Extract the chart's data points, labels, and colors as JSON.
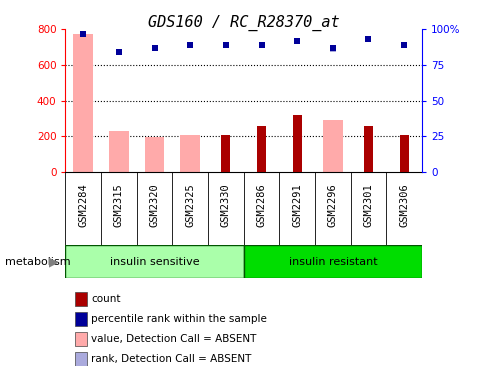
{
  "title": "GDS160 / RC_R28370_at",
  "samples": [
    "GSM2284",
    "GSM2315",
    "GSM2320",
    "GSM2325",
    "GSM2330",
    "GSM2286",
    "GSM2291",
    "GSM2296",
    "GSM2301",
    "GSM2306"
  ],
  "count_values": [
    0,
    0,
    0,
    0,
    210,
    260,
    320,
    0,
    260,
    205
  ],
  "value_absent": [
    775,
    230,
    195,
    205,
    0,
    0,
    0,
    290,
    0,
    0
  ],
  "percentile_rank": [
    97,
    84,
    87,
    89,
    89,
    89,
    92,
    87,
    93,
    89
  ],
  "rank_absent": [
    97,
    84,
    87,
    89,
    89,
    89,
    92,
    86,
    93,
    89
  ],
  "groups": [
    {
      "label": "insulin sensitive",
      "start": 0,
      "end": 5,
      "color": "#aaffaa"
    },
    {
      "label": "insulin resistant",
      "start": 5,
      "end": 10,
      "color": "#00dd00"
    }
  ],
  "group_label": "metabolism",
  "ylim_left": [
    0,
    800
  ],
  "ylim_right": [
    0,
    100
  ],
  "yticks_left": [
    0,
    200,
    400,
    600,
    800
  ],
  "yticks_right": [
    0,
    25,
    50,
    75,
    100
  ],
  "yticklabels_right": [
    "0",
    "25",
    "50",
    "75",
    "100%"
  ],
  "count_color": "#aa0000",
  "absent_value_color": "#ffaaaa",
  "absent_rank_color": "#aaaadd",
  "percentile_color": "#000099",
  "legend_items": [
    {
      "label": "count",
      "color": "#aa0000"
    },
    {
      "label": "percentile rank within the sample",
      "color": "#000099"
    },
    {
      "label": "value, Detection Call = ABSENT",
      "color": "#ffaaaa"
    },
    {
      "label": "rank, Detection Call = ABSENT",
      "color": "#aaaadd"
    }
  ],
  "background_color": "#ffffff",
  "plot_bg_color": "#ffffff",
  "xlabel_bg_color": "#cccccc",
  "title_fontsize": 11,
  "tick_fontsize": 7.5,
  "label_fontsize": 8
}
